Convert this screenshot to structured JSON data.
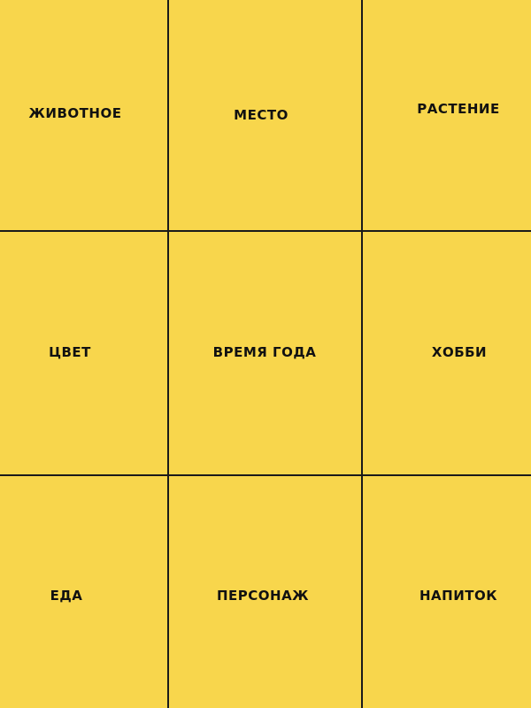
{
  "background_color": "#f8d64c",
  "cells": [
    {
      "label": "животное"
    },
    {
      "label": "место"
    },
    {
      "label": "растение"
    },
    {
      "label": "цвет"
    },
    {
      "label": "время года"
    },
    {
      "label": "хобби"
    },
    {
      "label": "еда"
    },
    {
      "label": "персонаж"
    },
    {
      "label": "напиток"
    }
  ]
}
